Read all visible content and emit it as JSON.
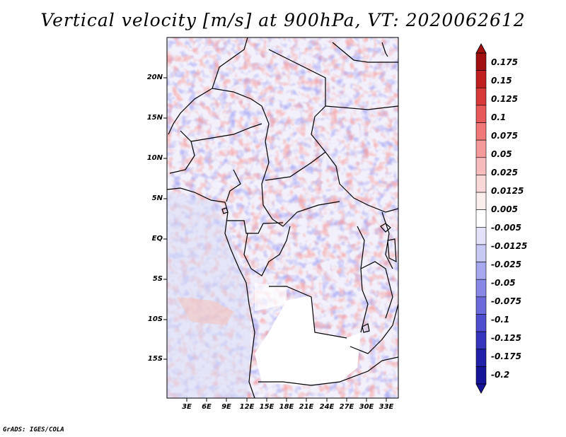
{
  "title": "Vertical velocity [m/s] at 900hPa, VT: 2020062612",
  "footer": "GrADS: IGES/COLA",
  "map": {
    "lat_labels": [
      "20N",
      "15N",
      "10N",
      "5N",
      "EQ",
      "5S",
      "10S",
      "15S"
    ],
    "lon_labels": [
      "3E",
      "6E",
      "9E",
      "12E",
      "15E",
      "18E",
      "21E",
      "24E",
      "27E",
      "30E",
      "33E"
    ]
  },
  "colorbar": {
    "labels": [
      "0.175",
      "0.15",
      "0.125",
      "0.1",
      "0.075",
      "0.05",
      "0.025",
      "0.0125",
      "0.005",
      "-0.005",
      "-0.0125",
      "-0.025",
      "-0.05",
      "-0.075",
      "-0.1",
      "-0.125",
      "-0.175",
      "-0.2"
    ],
    "colors": [
      "#a01010",
      "#c02020",
      "#d83a3a",
      "#e85a5a",
      "#f07878",
      "#f49a9a",
      "#f8bcbc",
      "#fbd8d8",
      "#fdeeee",
      "#ffffff",
      "#e2e2fa",
      "#c8c8f4",
      "#a8a8ee",
      "#8888e6",
      "#6a6add",
      "#4e4ed0",
      "#3434bc",
      "#2020a8",
      "#15159a"
    ],
    "arrow_top_color": "#a01010",
    "arrow_bottom_color": "#15159a"
  }
}
